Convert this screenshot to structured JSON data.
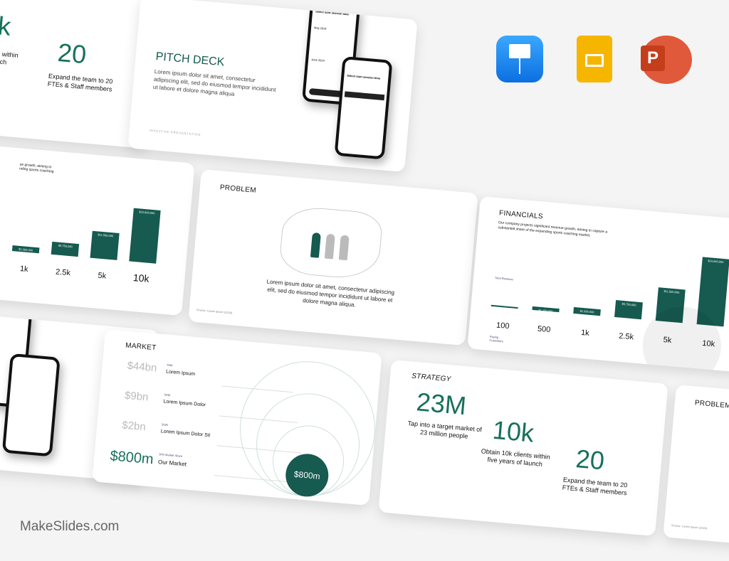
{
  "icons": {
    "keynote": "keynote-app-icon",
    "slides": "google-slides-app-icon",
    "powerpoint": "powerpoint-app-icon",
    "keynote_color": "#1e90f0",
    "slides_color": "#f6b600",
    "powerpoint_color": "#d04423"
  },
  "brand": "MakeSlides.com",
  "accent": "#165a50",
  "strategy_partial": {
    "big1": "k",
    "text1": "s within\nnch",
    "big2": "20",
    "text2": "Expand the team to 20 FTEs & Staff members"
  },
  "pitch": {
    "title": "PITCH DECK",
    "body": "Lorem ipsum dolor sit amet, consectetur adipiscing elit, sed do eiusmod tempor incididunt ut labore et dolore magna aliqua",
    "footer": "INVESTOR PRESENTATION",
    "phone1_title": "Select start session date",
    "phone1_month1": "May 2024",
    "phone1_month2": "June 2024",
    "phone2_title": "Select start session time"
  },
  "financials_partial": {
    "body": "ue growth, aiming to\nnding sports coaching",
    "bars": [
      "$2,300,000",
      "$5,750,000",
      "$11,500,000",
      "$23,000,000"
    ],
    "labels": [
      "1k",
      "2.5k",
      "5k",
      "10k"
    ]
  },
  "problem": {
    "title": "PROBLEM",
    "body": "Lorem ipsum dolor sit amet, consectetur adipiscing elit, sed do eiusmod tempor incididunt ut labore et dolore magna aliqua.",
    "source": "Source: Lorem ipsum (2024)"
  },
  "financials": {
    "title": "FINANCIALS",
    "body": "Our company projects significant revenue growth, aiming to capture a substantial share of the expanding sports coaching market.",
    "revenue_label": "Total Revenue",
    "customers_label": "Paying Customers",
    "chart_data": {
      "type": "bar",
      "categories": [
        "100",
        "500",
        "1k",
        "2.5k",
        "5k",
        "10k"
      ],
      "values": [
        230000,
        1150000,
        2300000,
        5750000,
        11500000,
        23000000
      ],
      "data_labels": [
        "",
        "$1,150,000",
        "$2,300,000",
        "$5,750,000",
        "$11,500,000",
        "$23,000,000"
      ]
    }
  },
  "market": {
    "title": "MARKET",
    "rows": [
      {
        "value": "$44bn",
        "tag": "TAM",
        "label": "Lorem Ipsum"
      },
      {
        "value": "$9bn",
        "tag": "SAM",
        "label": "Lorem Ipsum Dolor"
      },
      {
        "value": "$2bn",
        "tag": "SOM",
        "label": "Lorem Ipsum Dolor Sit"
      },
      {
        "value": "$800m",
        "tag": "10% Market Share",
        "label": "Our Market"
      }
    ],
    "circle_label": "$800m"
  },
  "strategy": {
    "title": "STRATEGY",
    "items": [
      {
        "big": "23M",
        "text": "Tap into a target market of 23 million people"
      },
      {
        "big": "10k",
        "text": "Obtain 10k clients within five years of launch"
      },
      {
        "big": "20",
        "text": "Expand the team to 20 FTEs & Staff members"
      }
    ]
  },
  "problem_partial": {
    "title": "PROBLEM",
    "source": "Source: Lorem ipsum (2024)"
  }
}
